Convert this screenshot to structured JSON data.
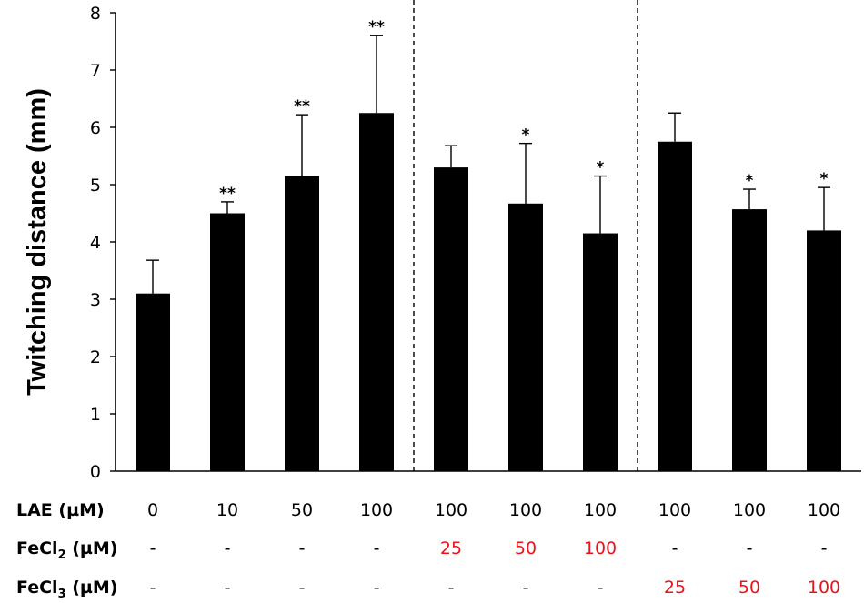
{
  "chart_data": {
    "type": "bar",
    "ylabel": "Twitching distance (mm)",
    "ylim": [
      0,
      8
    ],
    "yticks": [
      "0",
      "1",
      "2",
      "3",
      "4",
      "5",
      "6",
      "7",
      "8"
    ],
    "values": [
      3.1,
      4.5,
      5.15,
      6.25,
      5.3,
      4.67,
      4.15,
      5.75,
      4.57,
      4.2
    ],
    "errors": [
      0.58,
      0.2,
      1.07,
      1.35,
      0.38,
      1.05,
      1.0,
      0.5,
      0.35,
      0.75
    ],
    "significance": [
      "",
      "**",
      "**",
      "**",
      "",
      "*",
      "*",
      "",
      "*",
      "*"
    ],
    "separators_after_index": [
      3,
      6
    ],
    "bar_color": "#000000",
    "grid": false,
    "rows": [
      {
        "label_main": "LAE (",
        "label_sub": "",
        "label_end": "µM)",
        "cells": [
          "0",
          "10",
          "50",
          "100",
          "100",
          "100",
          "100",
          "100",
          "100",
          "100"
        ],
        "colors": [
          "#000000",
          "#000000",
          "#000000",
          "#000000",
          "#000000",
          "#000000",
          "#000000",
          "#000000",
          "#000000",
          "#000000"
        ]
      },
      {
        "label_main": "FeCl",
        "label_sub": "2",
        "label_end": " (µM)",
        "cells": [
          "-",
          "-",
          "-",
          "-",
          "25",
          "50",
          "100",
          "-",
          "-",
          "-"
        ],
        "colors": [
          "#000000",
          "#000000",
          "#000000",
          "#000000",
          "#e8141b",
          "#e8141b",
          "#e8141b",
          "#000000",
          "#000000",
          "#000000"
        ]
      },
      {
        "label_main": "FeCl",
        "label_sub": "3",
        "label_end": " (µM)",
        "cells": [
          "-",
          "-",
          "-",
          "-",
          "-",
          "-",
          "-",
          "25",
          "50",
          "100"
        ],
        "colors": [
          "#000000",
          "#000000",
          "#000000",
          "#000000",
          "#000000",
          "#000000",
          "#000000",
          "#e8141b",
          "#e8141b",
          "#e8141b"
        ]
      }
    ]
  }
}
